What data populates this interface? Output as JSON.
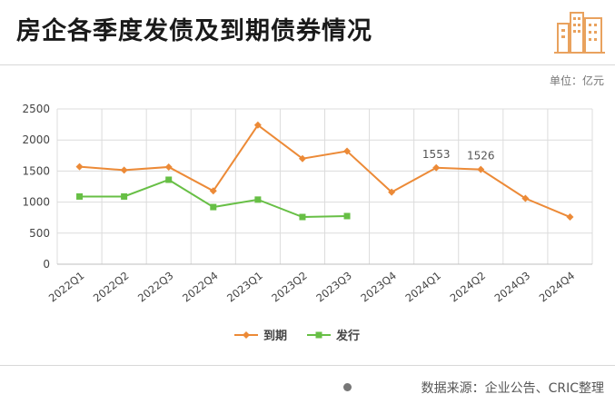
{
  "header": {
    "title": "房企各季度发债及到期债券情况"
  },
  "unit_label": "单位：亿元",
  "footer": {
    "source": "数据来源：企业公告、CRIC整理"
  },
  "colors": {
    "maturity": "#ec8a37",
    "issuance": "#67bf45",
    "logo": "#e9a25e",
    "grid": "#dcdcdc"
  },
  "chart_data": {
    "type": "line",
    "categories": [
      "2022Q1",
      "2022Q2",
      "2022Q3",
      "2022Q4",
      "2023Q1",
      "2023Q2",
      "2023Q3",
      "2023Q4",
      "2024Q1",
      "2024Q2",
      "2024Q3",
      "2024Q4"
    ],
    "series": [
      {
        "name": "到期",
        "color": "#ec8a37",
        "marker": "diamond",
        "values": [
          1570,
          1515,
          1565,
          1180,
          2240,
          1700,
          1820,
          1160,
          1553,
          1526,
          1060,
          760
        ]
      },
      {
        "name": "发行",
        "color": "#67bf45",
        "marker": "square",
        "values": [
          1090,
          1090,
          1360,
          920,
          1040,
          760,
          775,
          null,
          null,
          null,
          null,
          null
        ]
      }
    ],
    "data_labels": [
      {
        "series": 0,
        "index": 8,
        "text": "1553"
      },
      {
        "series": 0,
        "index": 9,
        "text": "1526"
      }
    ],
    "y_ticks": [
      0,
      500,
      1000,
      1500,
      2000,
      2500
    ],
    "ylim": [
      0,
      2500
    ],
    "grid": true,
    "legend_position": "bottom-center"
  }
}
